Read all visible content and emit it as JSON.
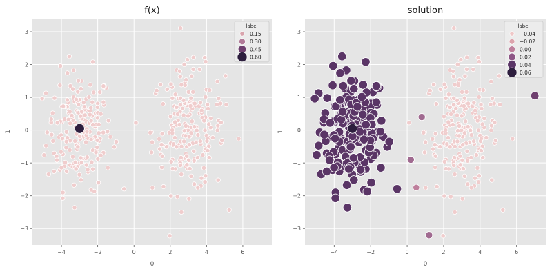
{
  "chart_data": [
    {
      "type": "scatter",
      "title": "f(x)",
      "xlabel": "0",
      "ylabel": "1",
      "xlim": [
        -5.6,
        7.6
      ],
      "ylim": [
        -3.5,
        3.4
      ],
      "xticks": [
        -4,
        -2,
        0,
        2,
        4,
        6
      ],
      "yticks": [
        -3,
        -2,
        -1,
        0,
        1,
        2,
        3
      ],
      "xtick_labels": [
        "−4",
        "−2",
        "0",
        "2",
        "4",
        "6"
      ],
      "ytick_labels": [
        "−3",
        "−2",
        "−1",
        "0",
        "1",
        "2",
        "3"
      ],
      "grid": true,
      "legend": {
        "title": "label",
        "placement": "top-right",
        "entries": [
          {
            "label": "0.15",
            "color": "#d9a4ad",
            "size": 0.15
          },
          {
            "label": "0.30",
            "color": "#b17a98",
            "size": 0.3
          },
          {
            "label": "0.45",
            "color": "#6e3f6e",
            "size": 0.45
          },
          {
            "label": "0.60",
            "color": "#2d1e3e",
            "size": 0.6
          }
        ]
      },
      "clusters": [
        {
          "center": [
            -3,
            0
          ],
          "spread": [
            0.9,
            0.9
          ],
          "count": 200,
          "label_value": 0.02,
          "color": "#f0cdcd"
        },
        {
          "center": [
            3,
            0
          ],
          "spread": [
            1.0,
            0.95
          ],
          "count": 200,
          "label_value": 0.02,
          "color": "#f0cdcd"
        }
      ],
      "highlight_points": [
        {
          "x": -3.0,
          "y": 0.05,
          "label_value": 0.6,
          "color": "#2d1e3e"
        }
      ]
    },
    {
      "type": "scatter",
      "title": "solution",
      "xlabel": "0",
      "ylabel": "1",
      "xlim": [
        -5.6,
        7.6
      ],
      "ylim": [
        -3.5,
        3.4
      ],
      "xticks": [
        -4,
        -2,
        0,
        2,
        4,
        6
      ],
      "yticks": [
        -3,
        -2,
        -1,
        0,
        1,
        2,
        3
      ],
      "xtick_labels": [
        "−4",
        "−2",
        "0",
        "2",
        "4",
        "6"
      ],
      "ytick_labels": [
        "−3",
        "−2",
        "−1",
        "0",
        "1",
        "2",
        "3"
      ],
      "grid": true,
      "legend": {
        "title": "label",
        "placement": "top-right",
        "entries": [
          {
            "label": "−0.04",
            "color": "#efc7c7",
            "size": -0.04
          },
          {
            "label": "−0.02",
            "color": "#dca3ac",
            "size": -0.02
          },
          {
            "label": "0.00",
            "color": "#be7f9c",
            "size": 0.0
          },
          {
            "label": "0.02",
            "color": "#8e5686",
            "size": 0.02
          },
          {
            "label": "0.04",
            "color": "#5a3566",
            "size": 0.04
          },
          {
            "label": "0.06",
            "color": "#2d1e3e",
            "size": 0.06
          }
        ]
      },
      "clusters": [
        {
          "center": [
            -3,
            0
          ],
          "spread": [
            0.9,
            0.9
          ],
          "count": 200,
          "label_value": 0.04,
          "color": "#5a3566"
        },
        {
          "center": [
            3,
            0
          ],
          "spread": [
            1.0,
            0.95
          ],
          "count": 200,
          "label_value": -0.04,
          "color": "#f0cdcd"
        }
      ],
      "highlight_points": [
        {
          "x": -3.0,
          "y": 0.05,
          "label_value": 0.06,
          "color": "#2d1e3e"
        },
        {
          "x": 7.0,
          "y": 1.05,
          "label_value": 0.03,
          "color": "#6e3f6e"
        },
        {
          "x": 1.2,
          "y": -3.2,
          "label_value": 0.01,
          "color": "#a06a90"
        },
        {
          "x": 0.8,
          "y": 0.4,
          "label_value": 0.01,
          "color": "#a06a90"
        },
        {
          "x": 0.2,
          "y": -0.9,
          "label_value": 0.01,
          "color": "#a06a90"
        },
        {
          "x": 0.5,
          "y": -1.75,
          "label_value": 0.0,
          "color": "#be7f9c"
        }
      ]
    }
  ]
}
